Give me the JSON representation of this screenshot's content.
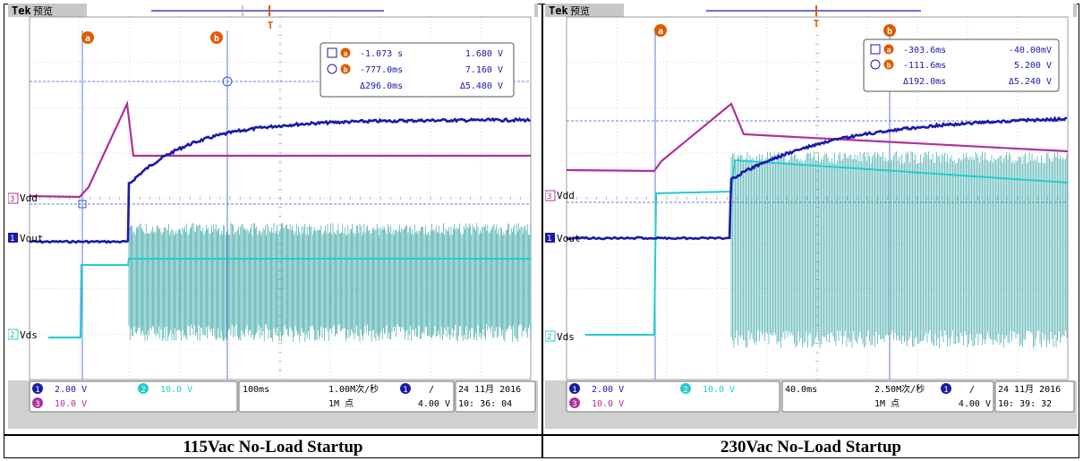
{
  "panels": [
    {
      "brand": "Tek",
      "mode": "预览",
      "caption": "115Vac No-Load Startup",
      "cursor_a_label": "a",
      "cursor_b_label": "b",
      "trigger_marker": "T",
      "readout": {
        "a_time": "-1.073 s",
        "a_volt": "1.680 V",
        "b_time": "-777.0ms",
        "b_volt": "7.160 V",
        "d_time": "Δ296.0ms",
        "d_volt": "Δ5.480 V"
      },
      "channels": {
        "vdd": "Vdd",
        "vout": "Vout",
        "vds": "Vds"
      },
      "status": {
        "ch1_num": "1",
        "ch1_scale": "2.00 V",
        "ch2_num": "2",
        "ch2_scale": "10.0 V",
        "ch3_num": "3",
        "ch3_scale": "10.0 V",
        "timebase": "100ms",
        "sample_rate": "1.00M次/秒",
        "record": "1M 点",
        "trig_ch": "1",
        "trig_slope": "/",
        "trig_level": "4.00 V",
        "date": "24 11月 2016",
        "time": "10: 36: 04"
      },
      "colors": {
        "ch1": "#1a1aa8",
        "ch2": "#22cccc",
        "ch3": "#b0309c",
        "cursor": "#e05a00"
      }
    },
    {
      "brand": "Tek",
      "mode": "预览",
      "caption": "230Vac No-Load Startup",
      "cursor_a_label": "a",
      "cursor_b_label": "b",
      "trigger_marker": "T",
      "readout": {
        "a_time": "-303.6ms",
        "a_volt": "-40.00mV",
        "b_time": "-111.6ms",
        "b_volt": "5.200 V",
        "d_time": "Δ192.0ms",
        "d_volt": "Δ5.240 V"
      },
      "channels": {
        "vdd": "Vdd",
        "vout": "Vout",
        "vds": "Vds"
      },
      "status": {
        "ch1_num": "1",
        "ch1_scale": "2.00 V",
        "ch2_num": "2",
        "ch2_scale": "10.0 V",
        "ch3_num": "3",
        "ch3_scale": "10.0 V",
        "timebase": "40.0ms",
        "sample_rate": "2.50M次/秒",
        "record": "1M 点",
        "trig_ch": "1",
        "trig_slope": "/",
        "trig_level": "4.00 V",
        "date": "24 11月 2016",
        "time": "10: 39: 32"
      },
      "colors": {
        "ch1": "#1a1aa8",
        "ch2": "#22cccc",
        "ch3": "#b0309c",
        "cursor": "#e05a00"
      }
    }
  ],
  "chart_data": [
    {
      "type": "line",
      "title": "115Vac No-Load Startup",
      "x_unit": "s",
      "timebase_per_div": "100ms",
      "series": [
        {
          "name": "Vdd",
          "scale_per_div": "10.0 V"
        },
        {
          "name": "Vout",
          "scale_per_div": "2.00 V"
        },
        {
          "name": "Vds",
          "scale_per_div": "10.0 V"
        }
      ],
      "cursors": {
        "a": {
          "t": -1.073,
          "v": 1.68
        },
        "b": {
          "t": -0.777,
          "v": 7.16
        },
        "delta_t": 0.296,
        "delta_v": 5.48
      }
    },
    {
      "type": "line",
      "title": "230Vac No-Load Startup",
      "x_unit": "s",
      "timebase_per_div": "40.0ms",
      "series": [
        {
          "name": "Vdd",
          "scale_per_div": "10.0 V"
        },
        {
          "name": "Vout",
          "scale_per_div": "2.00 V"
        },
        {
          "name": "Vds",
          "scale_per_div": "10.0 V"
        }
      ],
      "cursors": {
        "a": {
          "t": -0.3036,
          "v": -0.04
        },
        "b": {
          "t": -0.1116,
          "v": 5.2
        },
        "delta_t": 0.192,
        "delta_v": 5.24
      }
    }
  ]
}
